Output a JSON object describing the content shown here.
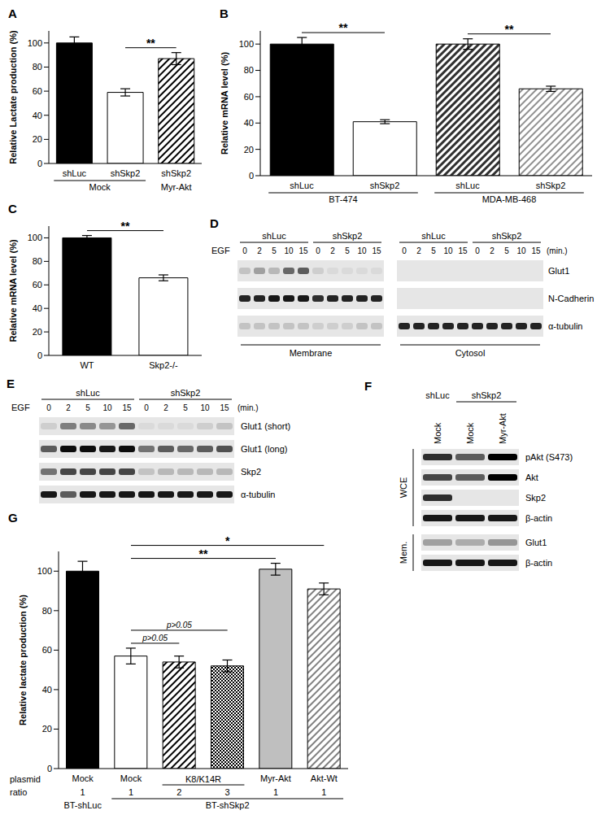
{
  "chart_data": [
    {
      "panel_label": "A",
      "type": "bar",
      "y_label": "Relative Lactate production (%)",
      "categories": [
        "shLuc",
        "shSkp2",
        "shSkp2"
      ],
      "values": [
        100,
        59,
        87
      ],
      "error": [
        5,
        3,
        5
      ],
      "colors": [
        "#000000",
        "#ffffff",
        "#000000"
      ],
      "ylim": [
        0,
        110
      ],
      "yticks": [
        0,
        20,
        40,
        60,
        80,
        100
      ],
      "label_rows": [
        {
          "items": [
            {
              "text": "Mock",
              "span": [
                0,
                1
              ]
            },
            {
              "text": "Myr-Akt",
              "span": [
                2,
                2
              ]
            }
          ]
        }
      ],
      "annotations": [
        {
          "text": "**",
          "between": [
            1,
            2
          ]
        }
      ]
    },
    {
      "panel_label": "B",
      "type": "bar",
      "y_label": "Relative mRNA level (%)",
      "categories": [
        "shLuc",
        "shSkp2",
        "shLuc",
        "shSkp2"
      ],
      "values": [
        100,
        41,
        100,
        66
      ],
      "error": [
        5,
        1.5,
        4,
        2
      ],
      "colors": [
        "#000000",
        "#ffffff",
        "#303030",
        "#909090"
      ],
      "ylim": [
        0,
        110
      ],
      "yticks": [
        0,
        20,
        40,
        60,
        80,
        100
      ],
      "label_rows": [
        {
          "items": [
            {
              "text": "BT-474",
              "span": [
                0,
                1
              ]
            },
            {
              "text": "MDA-MB-468",
              "span": [
                2,
                3
              ]
            }
          ]
        }
      ],
      "annotations": [
        {
          "text": "**",
          "between": [
            0,
            1
          ]
        },
        {
          "text": "**",
          "between": [
            2,
            3
          ]
        }
      ]
    },
    {
      "panel_label": "C",
      "type": "bar",
      "y_label": "Relative mRNA level (%)",
      "categories": [
        "WT",
        "Skp2-/-"
      ],
      "values": [
        100,
        66
      ],
      "error": [
        2,
        2.5
      ],
      "colors": [
        "#000000",
        "#ffffff"
      ],
      "ylim": [
        0,
        110
      ],
      "yticks": [
        0,
        20,
        40,
        60,
        80,
        100
      ],
      "annotations": [
        {
          "text": "**",
          "between": [
            0,
            1
          ]
        }
      ]
    },
    {
      "panel_label": "G",
      "type": "bar",
      "y_label": "Relative lactate production (%)",
      "categories": [
        "Mock",
        "Mock",
        null,
        null,
        "Myr-Akt",
        "Akt-Wt"
      ],
      "category_title": "plasmid",
      "category_spans": [
        {
          "text": "K8/K14R",
          "span": [
            2,
            3
          ]
        }
      ],
      "values": [
        100,
        57,
        54,
        52,
        101,
        91
      ],
      "error": [
        5,
        4,
        3,
        3,
        3,
        3
      ],
      "colors": [
        "#000000",
        "#ffffff",
        "#000000",
        "#000000",
        "#bfbfbf",
        "#808080"
      ],
      "ylim": [
        0,
        110
      ],
      "yticks": [
        0,
        20,
        40,
        60,
        80,
        100
      ],
      "label_rows": [
        {
          "title": "ratio",
          "values": [
            1,
            1,
            2,
            3,
            1,
            1
          ]
        },
        {
          "items": [
            {
              "text": "BT-shLuc",
              "span": [
                0,
                0
              ]
            },
            {
              "text": "BT-shSkp2",
              "span": [
                1,
                5
              ]
            }
          ]
        }
      ],
      "annotations": [
        {
          "text": "p>0.05",
          "between": [
            1,
            2
          ]
        },
        {
          "text": "p>0.05",
          "between": [
            1,
            3
          ]
        },
        {
          "text": "**",
          "between": [
            1,
            4
          ]
        },
        {
          "text": "*",
          "between": [
            1,
            5
          ]
        }
      ]
    }
  ],
  "blots": [
    {
      "panel_label": "D",
      "treatment": "EGF",
      "unit": "(min.)",
      "groups": [
        {
          "name": "shLuc",
          "lanes": [
            0,
            2,
            5,
            10,
            15
          ]
        },
        {
          "name": "shSkp2",
          "lanes": [
            0,
            2,
            5,
            10,
            15
          ]
        }
      ],
      "rows": [
        "Glut1",
        "N-Cadherin",
        "α-tubulin"
      ],
      "fractions": [
        {
          "name": "Membrane",
          "bands": [
            [
              0.15,
              0.3,
              0.2,
              0.55,
              0.6,
              0.1,
              0.05,
              0.05,
              0.05,
              0.05
            ],
            [
              0.85,
              0.85,
              0.9,
              0.9,
              0.9,
              0.8,
              0.85,
              0.85,
              0.85,
              0.85
            ],
            [
              0.15,
              0.15,
              0.15,
              0.15,
              0.15,
              0.1,
              0.1,
              0.1,
              0.15,
              0.15
            ]
          ]
        },
        {
          "name": "Cytosol",
          "bands": [
            [
              0,
              0,
              0,
              0,
              0,
              0,
              0,
              0,
              0,
              0
            ],
            [
              0,
              0,
              0,
              0,
              0,
              0,
              0,
              0,
              0,
              0
            ],
            [
              0.85,
              0.85,
              0.85,
              0.85,
              0.85,
              0.85,
              0.85,
              0.85,
              0.85,
              0.85
            ]
          ]
        }
      ]
    },
    {
      "panel_label": "E",
      "treatment": "EGF",
      "unit": "(min.)",
      "groups": [
        {
          "name": "shLuc",
          "lanes": [
            0,
            2,
            5,
            10,
            15
          ]
        },
        {
          "name": "shSkp2",
          "lanes": [
            0,
            2,
            5,
            10,
            15
          ]
        }
      ],
      "rows": [
        {
          "name": "Glut1 (short)",
          "bands": [
            0.1,
            0.45,
            0.4,
            0.35,
            0.55,
            0.05,
            0.05,
            0.05,
            0.1,
            0.15
          ]
        },
        {
          "name": "Glut1 (long)",
          "bands": [
            0.6,
            0.95,
            0.95,
            0.9,
            0.95,
            0.5,
            0.6,
            0.55,
            0.6,
            0.65
          ]
        },
        {
          "name": "Skp2",
          "bands": [
            0.5,
            0.7,
            0.7,
            0.7,
            0.7,
            0.15,
            0.2,
            0.2,
            0.2,
            0.2
          ]
        },
        {
          "name": "α-tubulin",
          "bands": [
            0.9,
            0.6,
            0.9,
            0.9,
            0.9,
            0.9,
            0.9,
            0.9,
            0.9,
            0.9
          ]
        }
      ]
    },
    {
      "panel_label": "F",
      "groups": [
        {
          "name": "shLuc",
          "lanes": [
            "Mock"
          ]
        },
        {
          "name": "shSkp2",
          "lanes": [
            "Mock",
            "Myr-Akt"
          ]
        }
      ],
      "sections": [
        {
          "name": "WCE",
          "rows": [
            {
              "name": "pAkt (S473)",
              "bands": [
                0.8,
                0.6,
                1
              ]
            },
            {
              "name": "Akt",
              "bands": [
                0.7,
                0.6,
                1
              ]
            },
            {
              "name": "Skp2",
              "bands": [
                0.8,
                0,
                0
              ]
            },
            {
              "name": "β-actin",
              "bands": [
                0.9,
                0.9,
                0.9
              ]
            }
          ]
        },
        {
          "name": "Mem.",
          "rows": [
            {
              "name": "Glut1",
              "bands": [
                0.3,
                0.25,
                0.35
              ]
            },
            {
              "name": "β-actin",
              "bands": [
                0.9,
                0.9,
                0.9
              ]
            }
          ]
        }
      ]
    }
  ]
}
